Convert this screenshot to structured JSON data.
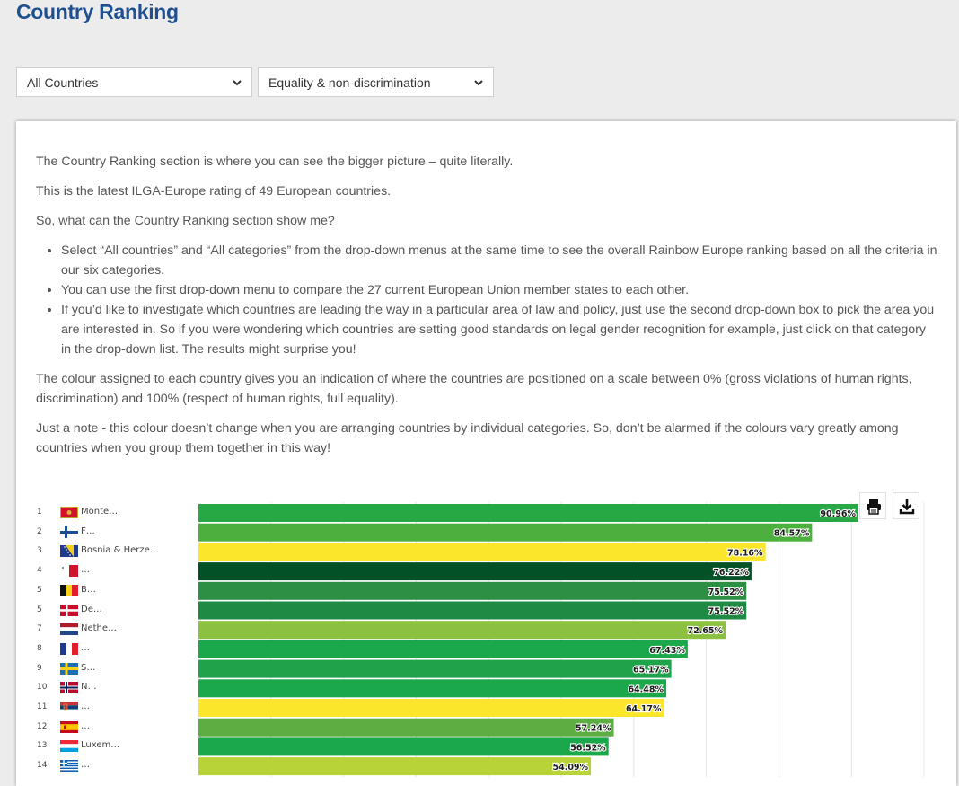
{
  "header": {
    "title": "Country Ranking"
  },
  "filters": {
    "country_select": "All Countries",
    "category_select": "Equality & non-discrimination"
  },
  "intro": {
    "p1": "The Country Ranking section is where you can see the bigger picture – quite literally.",
    "p2": "This is the latest ILGA-Europe rating of 49 European countries.",
    "p3": "So, what can the Country Ranking section show me?",
    "bullets": [
      "Select “All countries” and “All categories” from the drop-down menus at the same time to see the overall Rainbow Europe ranking based on all the criteria in our six categories.",
      "You can use the first drop-down menu to compare the 27 current European Union member states to each other.",
      "If you’d like to investigate which countries are leading the way in a particular area of law and policy, just use the second drop-down box to pick the area you are interested in. So if you were wondering which countries are setting good standards on legal gender recognition for example, just click on that category in the drop-down list. The results might surprise you!"
    ],
    "p4": "The colour assigned to each country gives you an indication of where the countries are positioned on a scale between 0% (gross violations of human rights, discrimination) and 100% (respect of human rights, full equality).",
    "p5": "Just a note - this colour doesn’t change when you are arranging countries by individual categories. So, don’t be alarmed if the colours vary greatly among countries when you group them together in this way!"
  },
  "toolbar": {
    "print_icon": "print-icon",
    "download_icon": "download-icon"
  },
  "chart_data": {
    "type": "bar",
    "orientation": "horizontal",
    "xlim": [
      0,
      100
    ],
    "grid": true,
    "rows": [
      {
        "rank": "1",
        "name": "Monte…",
        "value": 90.96,
        "label": "90.96%",
        "color": "#27a844",
        "flag": "montenegro"
      },
      {
        "rank": "2",
        "name": "F…",
        "value": 84.57,
        "label": "84.57%",
        "color": "#4caf3e",
        "flag": "finland"
      },
      {
        "rank": "3",
        "name": "Bosnia & Herze…",
        "value": 78.16,
        "label": "78.16%",
        "color": "#fbe62c",
        "flag": "bosnia"
      },
      {
        "rank": "4",
        "name": "…",
        "value": 76.22,
        "label": "76.22%",
        "color": "#025127",
        "flag": "malta"
      },
      {
        "rank": "5",
        "name": "B…",
        "value": 75.52,
        "label": "75.52%",
        "color": "#2d8f44",
        "flag": "belgium"
      },
      {
        "rank": "5",
        "name": "De…",
        "value": 75.52,
        "label": "75.52%",
        "color": "#1f8a44",
        "flag": "denmark"
      },
      {
        "rank": "7",
        "name": "Nethe…",
        "value": 72.65,
        "label": "72.65%",
        "color": "#8cc041",
        "flag": "netherlands"
      },
      {
        "rank": "8",
        "name": "…",
        "value": 67.43,
        "label": "67.43%",
        "color": "#1aa84a",
        "flag": "france"
      },
      {
        "rank": "9",
        "name": "S…",
        "value": 65.17,
        "label": "65.17%",
        "color": "#1ea24a",
        "flag": "sweden"
      },
      {
        "rank": "10",
        "name": "N…",
        "value": 64.48,
        "label": "64.48%",
        "color": "#1aa84a",
        "flag": "norway"
      },
      {
        "rank": "11",
        "name": "…",
        "value": 64.17,
        "label": "64.17%",
        "color": "#fbe62c",
        "flag": "serbia"
      },
      {
        "rank": "12",
        "name": "…",
        "value": 57.24,
        "label": "57.24%",
        "color": "#5cae42",
        "flag": "spain"
      },
      {
        "rank": "13",
        "name": "Luxem…",
        "value": 56.52,
        "label": "56.52%",
        "color": "#1aa84a",
        "flag": "luxembourg"
      },
      {
        "rank": "14",
        "name": "…",
        "value": 54.09,
        "label": "54.09%",
        "color": "#b7d337",
        "flag": "greece"
      }
    ]
  }
}
